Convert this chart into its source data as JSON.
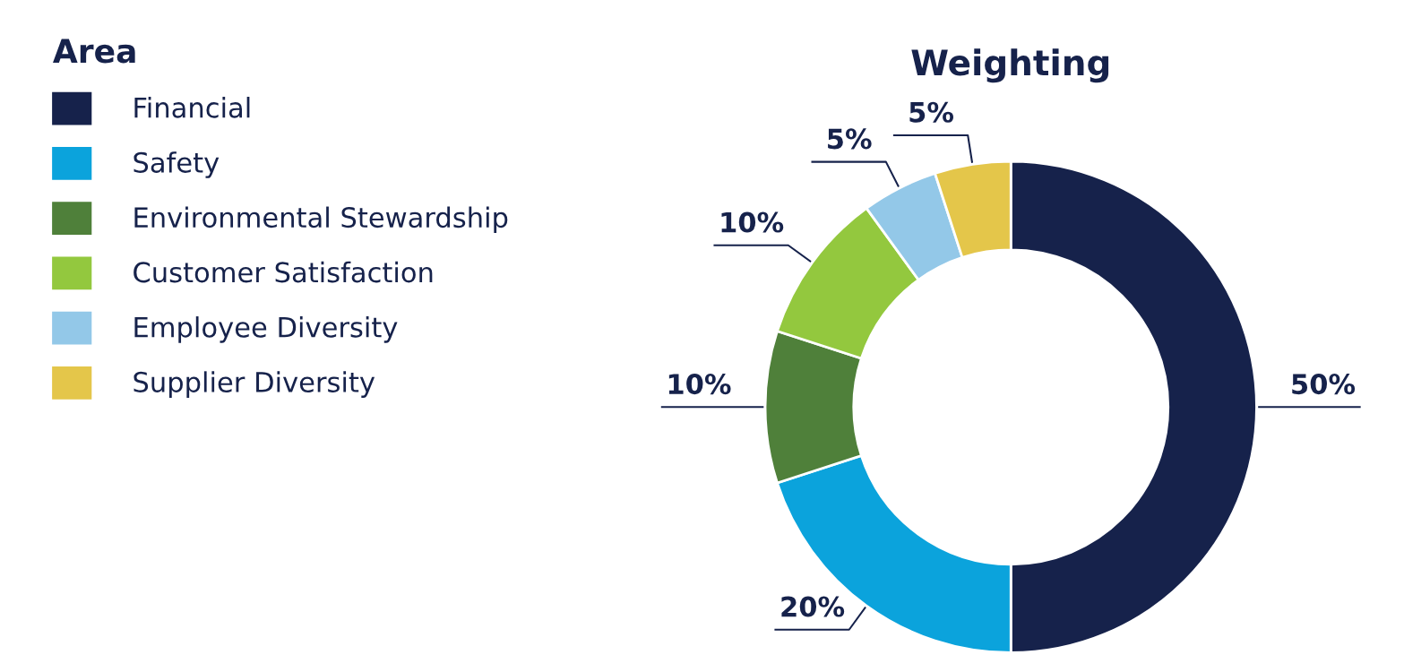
{
  "chart_data": {
    "type": "donut",
    "title": "Weighting",
    "legend_title": "Area",
    "legend": "left",
    "categories": [
      "Financial",
      "Safety",
      "Environmental Stewardship",
      "Customer Satisfaction",
      "Employee Diversity",
      "Supplier Diversity"
    ],
    "values": [
      50,
      20,
      10,
      10,
      5,
      5
    ],
    "value_labels": [
      "50%",
      "20%",
      "10%",
      "10%",
      "5%",
      "5%"
    ],
    "colors": [
      "#16224b",
      "#0ba3dc",
      "#4f803a",
      "#93c83e",
      "#93c8e8",
      "#e4c64a"
    ]
  }
}
